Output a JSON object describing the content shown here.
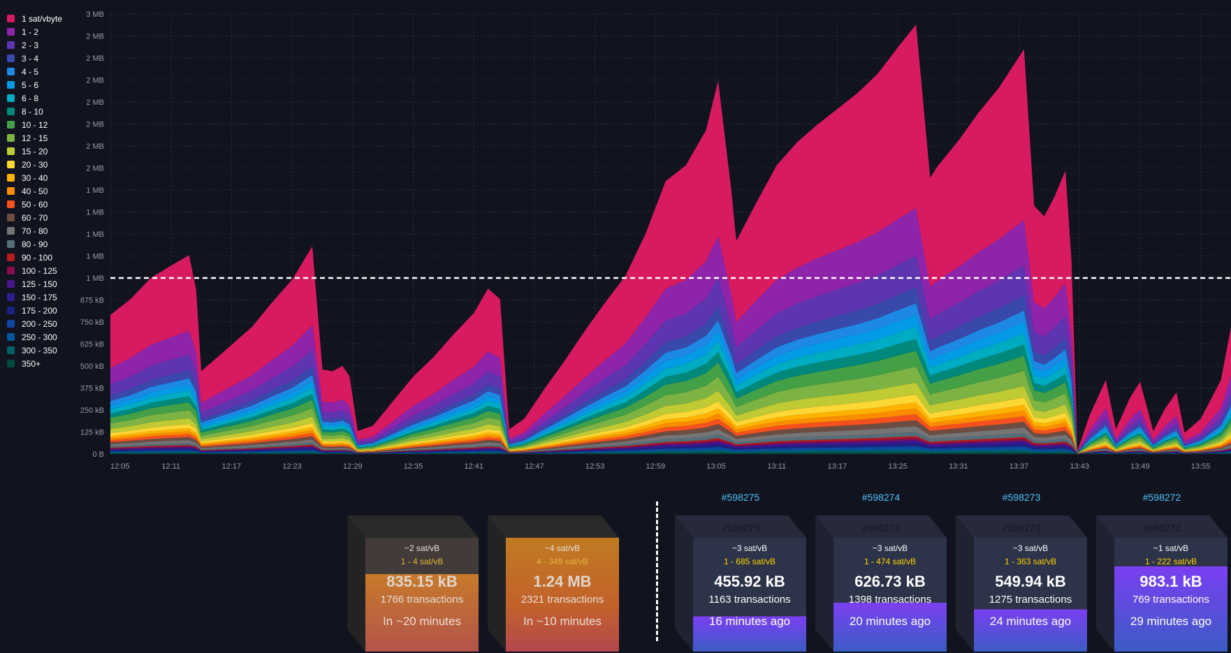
{
  "colors": {
    "background": "#11131f",
    "limit_line": "#ffffff",
    "block_link": "#4fc3f7",
    "fee_range": "#ffd400"
  },
  "legend": {
    "items": [
      {
        "label": "1 sat/vbyte",
        "color": "#d81b60"
      },
      {
        "label": "1 - 2",
        "color": "#8e24aa"
      },
      {
        "label": "2 - 3",
        "color": "#5e35b1"
      },
      {
        "label": "3 - 4",
        "color": "#3949ab"
      },
      {
        "label": "4 - 5",
        "color": "#1e88e5"
      },
      {
        "label": "5 - 6",
        "color": "#039be5"
      },
      {
        "label": "6 - 8",
        "color": "#00acc1"
      },
      {
        "label": "8 - 10",
        "color": "#00897b"
      },
      {
        "label": "10 - 12",
        "color": "#43a047"
      },
      {
        "label": "12 - 15",
        "color": "#7cb342"
      },
      {
        "label": "15 - 20",
        "color": "#c0ca33"
      },
      {
        "label": "20 - 30",
        "color": "#fdd835"
      },
      {
        "label": "30 - 40",
        "color": "#ffb300"
      },
      {
        "label": "40 - 50",
        "color": "#fb8c00"
      },
      {
        "label": "50 - 60",
        "color": "#f4511e"
      },
      {
        "label": "60 - 70",
        "color": "#6d4c41"
      },
      {
        "label": "70 - 80",
        "color": "#757575"
      },
      {
        "label": "80 - 90",
        "color": "#546e7a"
      },
      {
        "label": "90 - 100",
        "color": "#b71c1c"
      },
      {
        "label": "100 - 125",
        "color": "#880e4f"
      },
      {
        "label": "125 - 150",
        "color": "#4a148c"
      },
      {
        "label": "150 - 175",
        "color": "#311b92"
      },
      {
        "label": "175 - 200",
        "color": "#1a237e"
      },
      {
        "label": "200 - 250",
        "color": "#0d47a1"
      },
      {
        "label": "250 - 300",
        "color": "#01579b"
      },
      {
        "label": "300 - 350",
        "color": "#006064"
      },
      {
        "label": "350+",
        "color": "#004d40"
      }
    ]
  },
  "chart_data": {
    "type": "area",
    "stacked": true,
    "y_tick_labels": [
      "0 B",
      "125 kB",
      "250 kB",
      "375 kB",
      "500 kB",
      "625 kB",
      "750 kB",
      "875 kB",
      "1 MB",
      "1 MB",
      "1 MB",
      "1 MB",
      "1 MB",
      "2 MB",
      "2 MB",
      "2 MB",
      "2 MB",
      "2 MB",
      "2 MB",
      "2 MB",
      "3 MB"
    ],
    "ylim_kb": [
      0,
      2500
    ],
    "limit_line_kb": 1000,
    "x_tick_labels": [
      "12:05",
      "12:11",
      "12:17",
      "12:23",
      "12:29",
      "12:35",
      "12:41",
      "12:47",
      "12:53",
      "12:59",
      "13:05",
      "13:11",
      "13:17",
      "13:25",
      "13:31",
      "13:37",
      "13:43",
      "13:49",
      "13:55"
    ],
    "x_minutes_start": 725,
    "x_minutes_end": 836,
    "grid": true,
    "legend_position": "left",
    "total_kb": [
      {
        "t": 725,
        "v": 790
      },
      {
        "t": 727,
        "v": 880
      },
      {
        "t": 729,
        "v": 1000
      },
      {
        "t": 731,
        "v": 1070
      },
      {
        "t": 732.8,
        "v": 1130
      },
      {
        "t": 733.5,
        "v": 930
      },
      {
        "t": 734,
        "v": 470
      },
      {
        "t": 735,
        "v": 520
      },
      {
        "t": 737,
        "v": 620
      },
      {
        "t": 739,
        "v": 720
      },
      {
        "t": 741,
        "v": 860
      },
      {
        "t": 743,
        "v": 990
      },
      {
        "t": 745,
        "v": 1180
      },
      {
        "t": 746,
        "v": 480
      },
      {
        "t": 747,
        "v": 470
      },
      {
        "t": 748,
        "v": 500
      },
      {
        "t": 748.7,
        "v": 440
      },
      {
        "t": 749.5,
        "v": 130
      },
      {
        "t": 751,
        "v": 160
      },
      {
        "t": 753,
        "v": 300
      },
      {
        "t": 755,
        "v": 440
      },
      {
        "t": 757,
        "v": 550
      },
      {
        "t": 759,
        "v": 680
      },
      {
        "t": 761,
        "v": 800
      },
      {
        "t": 762.4,
        "v": 940
      },
      {
        "t": 763.6,
        "v": 880
      },
      {
        "t": 764.5,
        "v": 140
      },
      {
        "t": 766,
        "v": 200
      },
      {
        "t": 768,
        "v": 370
      },
      {
        "t": 770,
        "v": 530
      },
      {
        "t": 772,
        "v": 700
      },
      {
        "t": 774,
        "v": 860
      },
      {
        "t": 776,
        "v": 1010
      },
      {
        "t": 778,
        "v": 1250
      },
      {
        "t": 780,
        "v": 1550
      },
      {
        "t": 782,
        "v": 1640
      },
      {
        "t": 784,
        "v": 1840
      },
      {
        "t": 785.2,
        "v": 2120
      },
      {
        "t": 786.5,
        "v": 1500
      },
      {
        "t": 787,
        "v": 1210
      },
      {
        "t": 789,
        "v": 1430
      },
      {
        "t": 791,
        "v": 1640
      },
      {
        "t": 793,
        "v": 1770
      },
      {
        "t": 795,
        "v": 1870
      },
      {
        "t": 797,
        "v": 1960
      },
      {
        "t": 799,
        "v": 2050
      },
      {
        "t": 801,
        "v": 2160
      },
      {
        "t": 803,
        "v": 2310
      },
      {
        "t": 804.8,
        "v": 2440
      },
      {
        "t": 806.2,
        "v": 1570
      },
      {
        "t": 807,
        "v": 1640
      },
      {
        "t": 809,
        "v": 1780
      },
      {
        "t": 811,
        "v": 1940
      },
      {
        "t": 813,
        "v": 2080
      },
      {
        "t": 815.5,
        "v": 2300
      },
      {
        "t": 816.5,
        "v": 1410
      },
      {
        "t": 817.5,
        "v": 1350
      },
      {
        "t": 818.5,
        "v": 1460
      },
      {
        "t": 819.6,
        "v": 1610
      },
      {
        "t": 820.2,
        "v": 1100
      },
      {
        "t": 820.8,
        "v": 20
      },
      {
        "t": 822,
        "v": 220
      },
      {
        "t": 823.6,
        "v": 420
      },
      {
        "t": 824.6,
        "v": 140
      },
      {
        "t": 826,
        "v": 320
      },
      {
        "t": 827,
        "v": 410
      },
      {
        "t": 828.3,
        "v": 130
      },
      {
        "t": 829.5,
        "v": 260
      },
      {
        "t": 830.6,
        "v": 350
      },
      {
        "t": 831.4,
        "v": 120
      },
      {
        "t": 833,
        "v": 200
      },
      {
        "t": 835,
        "v": 420
      },
      {
        "t": 836,
        "v": 720
      }
    ]
  },
  "mempool_blocks": [
    {
      "fee": "~2 sat/vB",
      "range": "1 - 4 sat/vB",
      "size": "835.15 kB",
      "tx": "1766 transactions",
      "time": "In ~20 minutes"
    },
    {
      "fee": "~4 sat/vB",
      "range": "4 - 349 sat/vB",
      "size": "1.24 MB",
      "tx": "2321 transactions",
      "time": "In ~10 minutes"
    }
  ],
  "mined_blocks": [
    {
      "number": "#598275",
      "fee": "~3 sat/vB",
      "range": "1 - 685 sat/vB",
      "size": "455.92 kB",
      "tx": "1163 transactions",
      "time": "16 minutes ago",
      "fill": 0.31
    },
    {
      "number": "#598274",
      "fee": "~3 sat/vB",
      "range": "1 - 474 sat/vB",
      "size": "626.73 kB",
      "tx": "1398 transactions",
      "time": "20 minutes ago",
      "fill": 0.43
    },
    {
      "number": "#598273",
      "fee": "~3 sat/vB",
      "range": "1 - 363 sat/vB",
      "size": "549.94 kB",
      "tx": "1275 transactions",
      "time": "24 minutes ago",
      "fill": 0.37
    },
    {
      "number": "#598272",
      "fee": "~1 sat/vB",
      "range": "1 - 222 sat/vB",
      "size": "983.1 kB",
      "tx": "769 transactions",
      "time": "29 minutes ago",
      "fill": 0.75
    }
  ]
}
